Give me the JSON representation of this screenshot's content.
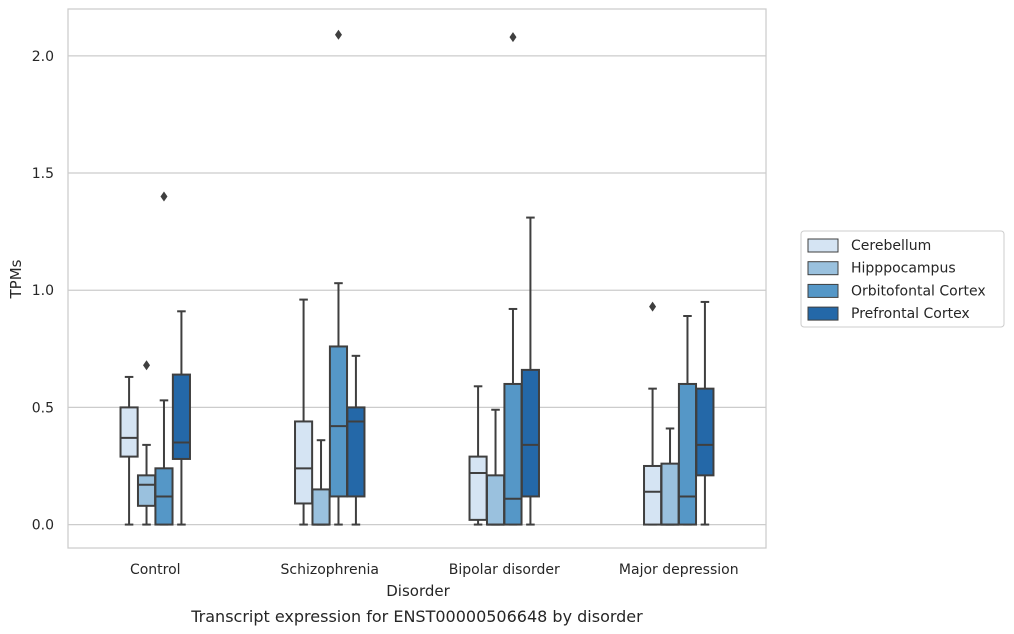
{
  "chart_data": {
    "type": "box",
    "title": "Transcript expression for ENST00000506648 by disorder",
    "xlabel": "Disorder",
    "ylabel": "TPMs",
    "categories": [
      "Control",
      "Schizophrenia",
      "Bipolar disorder",
      "Major depression"
    ],
    "ylim": [
      -0.1,
      2.2
    ],
    "yticks": [
      "0.0",
      "0.5",
      "1.0",
      "1.5",
      "2.0"
    ],
    "grid": "horizontal",
    "legend_position": "right",
    "series": [
      {
        "name": "Cerebellum",
        "color": "#d5e4f3",
        "boxes": [
          {
            "whislo": 0.0,
            "q1": 0.29,
            "med": 0.37,
            "q3": 0.5,
            "whishi": 0.63,
            "fliers": []
          },
          {
            "whislo": 0.0,
            "q1": 0.09,
            "med": 0.24,
            "q3": 0.44,
            "whishi": 0.96,
            "fliers": []
          },
          {
            "whislo": 0.0,
            "q1": 0.02,
            "med": 0.22,
            "q3": 0.29,
            "whishi": 0.59,
            "fliers": []
          },
          {
            "whislo": 0.0,
            "q1": 0.0,
            "med": 0.14,
            "q3": 0.25,
            "whishi": 0.58,
            "fliers": [
              0.93
            ]
          }
        ]
      },
      {
        "name": "Hipppocampus",
        "color": "#9ac1de",
        "boxes": [
          {
            "whislo": 0.0,
            "q1": 0.08,
            "med": 0.17,
            "q3": 0.21,
            "whishi": 0.34,
            "fliers": [
              0.68
            ]
          },
          {
            "whislo": 0.0,
            "q1": 0.0,
            "med": 0.0,
            "q3": 0.15,
            "whishi": 0.36,
            "fliers": []
          },
          {
            "whislo": 0.0,
            "q1": 0.0,
            "med": 0.0,
            "q3": 0.21,
            "whishi": 0.49,
            "fliers": []
          },
          {
            "whislo": 0.0,
            "q1": 0.0,
            "med": 0.0,
            "q3": 0.26,
            "whishi": 0.41,
            "fliers": []
          }
        ]
      },
      {
        "name": "Orbitofontal Cortex",
        "color": "#5597c7",
        "boxes": [
          {
            "whislo": 0.0,
            "q1": 0.0,
            "med": 0.12,
            "q3": 0.24,
            "whishi": 0.53,
            "fliers": [
              1.4
            ]
          },
          {
            "whislo": 0.0,
            "q1": 0.12,
            "med": 0.42,
            "q3": 0.76,
            "whishi": 1.03,
            "fliers": [
              2.09
            ]
          },
          {
            "whislo": 0.0,
            "q1": 0.0,
            "med": 0.11,
            "q3": 0.6,
            "whishi": 0.92,
            "fliers": [
              2.08
            ]
          },
          {
            "whislo": 0.0,
            "q1": 0.0,
            "med": 0.12,
            "q3": 0.6,
            "whishi": 0.89,
            "fliers": []
          }
        ]
      },
      {
        "name": "Prefrontal Cortex",
        "color": "#2468a8",
        "boxes": [
          {
            "whislo": 0.0,
            "q1": 0.28,
            "med": 0.35,
            "q3": 0.64,
            "whishi": 0.91,
            "fliers": []
          },
          {
            "whislo": 0.0,
            "q1": 0.12,
            "med": 0.44,
            "q3": 0.5,
            "whishi": 0.72,
            "fliers": []
          },
          {
            "whislo": 0.0,
            "q1": 0.12,
            "med": 0.34,
            "q3": 0.66,
            "whishi": 1.31,
            "fliers": []
          },
          {
            "whislo": 0.0,
            "q1": 0.21,
            "med": 0.34,
            "q3": 0.58,
            "whishi": 0.95,
            "fliers": []
          }
        ]
      }
    ]
  }
}
